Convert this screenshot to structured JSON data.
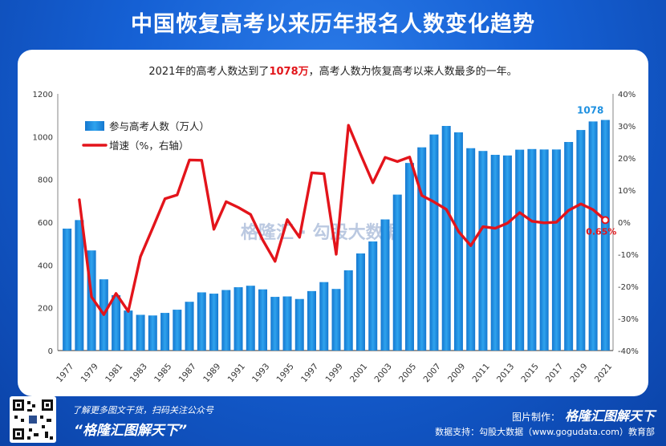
{
  "title": "中国恢复高考以来历年报名人数变化趋势",
  "subtitle": {
    "prefix": "2021年的高考人数达到了",
    "highlight": "1078万",
    "suffix": "，高考人数为恢复高考以来人数最多的一年。"
  },
  "watermark": "格隆汇 · 勾股大数据",
  "footer": {
    "line1": "了解更多图文干货，扫码关注公众号",
    "line2": "“格隆汇图解天下”",
    "credit_label": "图片制作：",
    "credit_brand": "格隆汇图解天下",
    "support": "数据支持：勾股大数据（www.gogudata.com）教育部"
  },
  "colors": {
    "bar": "#1e8fde",
    "line": "#e3141b",
    "highlight": "#e2161b",
    "last_label": "#1e90e0"
  },
  "chart_data": {
    "type": "bar",
    "title": "",
    "categories": [
      "1977",
      "1978",
      "1979",
      "1980",
      "1981",
      "1982",
      "1983",
      "1984",
      "1985",
      "1986",
      "1987",
      "1988",
      "1989",
      "1990",
      "1991",
      "1992",
      "1993",
      "1994",
      "1995",
      "1996",
      "1997",
      "1998",
      "1999",
      "2000",
      "2001",
      "2002",
      "2003",
      "2004",
      "2005",
      "2006",
      "2007",
      "2008",
      "2009",
      "2010",
      "2011",
      "2012",
      "2013",
      "2014",
      "2015",
      "2016",
      "2017",
      "2018",
      "2019",
      "2020",
      "2021"
    ],
    "x_tick_labels": [
      "1977",
      "1979",
      "1981",
      "1983",
      "1985",
      "1987",
      "1989",
      "1991",
      "1993",
      "1995",
      "1997",
      "1999",
      "2001",
      "2003",
      "2005",
      "2007",
      "2009",
      "2011",
      "2013",
      "2015",
      "2017",
      "2019",
      "2021"
    ],
    "series": [
      {
        "name": "参与高考人数（万人）",
        "type": "bar",
        "axis": "left",
        "values": [
          570,
          610,
          468,
          333,
          259,
          187,
          167,
          164,
          176,
          191,
          228,
          272,
          266,
          283,
          296,
          303,
          286,
          251,
          253,
          241,
          278,
          320,
          288,
          375,
          454,
          510,
          613,
          729,
          877,
          950,
          1010,
          1050,
          1020,
          946,
          933,
          915,
          912,
          939,
          942,
          940,
          940,
          975,
          1031,
          1071,
          1078
        ]
      },
      {
        "name": "增速（%，右轴）",
        "type": "line",
        "axis": "right",
        "values": [
          null,
          7.0,
          -23.3,
          -28.8,
          -22.2,
          -27.8,
          -10.7,
          -1.8,
          7.3,
          8.5,
          19.4,
          19.3,
          -2.2,
          6.4,
          4.6,
          2.4,
          -5.6,
          -12.2,
          0.8,
          -4.7,
          15.4,
          15.1,
          -10.0,
          30.2,
          21.1,
          12.3,
          20.2,
          18.9,
          20.3,
          8.3,
          6.3,
          4.0,
          -2.9,
          -7.3,
          -1.4,
          -1.9,
          -0.3,
          3.0,
          0.3,
          -0.2,
          0.0,
          3.7,
          5.7,
          3.9,
          0.65
        ]
      }
    ],
    "y_left": {
      "ticks": [
        0,
        200,
        400,
        600,
        800,
        1000,
        1200
      ],
      "ylim": [
        0,
        1200
      ]
    },
    "y_right": {
      "ticks": [
        "40%",
        "30%",
        "20%",
        "10%",
        "0%",
        "-10%",
        "-20%",
        "-30%",
        "-40%"
      ],
      "ylim": [
        -40,
        40
      ]
    },
    "annotations": [
      {
        "text": "1078",
        "series": "参与高考人数（万人）",
        "category": "2021"
      },
      {
        "text": "0.65%",
        "series": "增速（%，右轴）",
        "category": "2021"
      }
    ],
    "legend": {
      "position": "top-left",
      "entries": [
        "参与高考人数（万人）",
        "增速（%，右轴）"
      ]
    }
  }
}
